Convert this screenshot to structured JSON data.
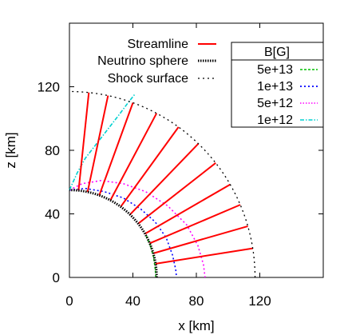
{
  "chart_data": {
    "type": "line",
    "xlabel": "x [km]",
    "ylabel": "z [km]",
    "xlim": [
      0,
      160
    ],
    "ylim": [
      0,
      160
    ],
    "x_ticks": [
      0,
      40,
      80,
      120
    ],
    "y_ticks": [
      0,
      40,
      80,
      120
    ],
    "grid": false,
    "legend_left": {
      "placement": "top-left",
      "entries": [
        {
          "label": "Streamline",
          "color": "#ff0000",
          "style": "solid"
        },
        {
          "label": "Neutrino sphere",
          "color": "#000000",
          "style": "dotted-thick"
        },
        {
          "label": "Shock surface",
          "color": "#000000",
          "style": "dashed"
        }
      ]
    },
    "legend_right": {
      "placement": "top-right",
      "title": "B[G]",
      "entries": [
        {
          "label": "5e+13",
          "color": "#00c000",
          "style": "dashed"
        },
        {
          "label": "1e+13",
          "color": "#0000ff",
          "style": "dotted"
        },
        {
          "label": "5e+12",
          "color": "#ff00ff",
          "style": "dotted"
        },
        {
          "label": "1e+12",
          "color": "#00d0d0",
          "style": "dash-dot"
        }
      ]
    },
    "neutrino_sphere_radius": 55,
    "shock_radius": 117,
    "streamline_angles_deg": [
      9,
      16,
      23,
      30,
      38,
      46,
      54,
      62,
      70,
      78,
      84
    ],
    "field_contours": [
      {
        "label": "5e+13",
        "points": [
          [
            48.5,
            26
          ],
          [
            51,
            20
          ],
          [
            53,
            13
          ],
          [
            54,
            6
          ],
          [
            54.5,
            0
          ]
        ]
      },
      {
        "label": "1e+13",
        "points": [
          [
            0,
            55
          ],
          [
            10,
            56
          ],
          [
            22,
            54
          ],
          [
            34,
            50
          ],
          [
            45,
            43
          ],
          [
            54,
            35
          ],
          [
            61,
            25
          ],
          [
            65,
            14
          ],
          [
            67,
            5
          ],
          [
            67.5,
            0
          ]
        ]
      },
      {
        "label": "5e+12",
        "points": [
          [
            0,
            55
          ],
          [
            8,
            59
          ],
          [
            20,
            61
          ],
          [
            34,
            59
          ],
          [
            48,
            54
          ],
          [
            62,
            45
          ],
          [
            74,
            33
          ],
          [
            81,
            20
          ],
          [
            84.5,
            8
          ],
          [
            85.5,
            0
          ]
        ]
      },
      {
        "label": "1e+12",
        "points": [
          [
            0,
            55
          ],
          [
            5,
            66
          ],
          [
            10,
            75
          ],
          [
            17,
            84
          ],
          [
            24,
            93
          ],
          [
            31,
            102
          ],
          [
            37,
            110
          ],
          [
            41,
            115
          ]
        ]
      }
    ]
  }
}
